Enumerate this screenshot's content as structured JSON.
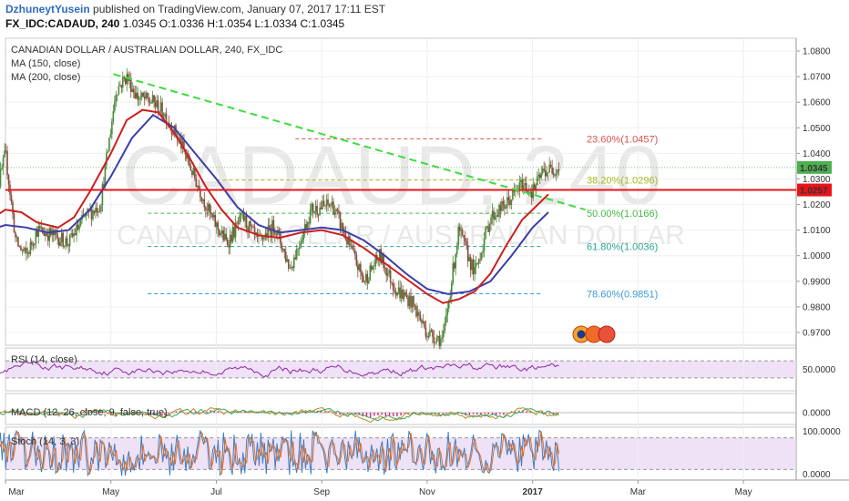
{
  "header": {
    "author": "DzhuneytYusein",
    "published_text": " published on TradingView.com, January 07, 2017 17:11 EST",
    "symbol": "FX_IDC:CADAUD, 240",
    "ohlc": " 1.0345 O:1.0336 H:1.0354 L:1.0334 C:1.0345"
  },
  "chart_data": {
    "type": "line",
    "title": "CANADIAN DOLLAR / AUSTRALIAN DOLLAR, 240, FX_IDC",
    "watermark": {
      "symbol": "CADAUD, 240",
      "name": "CANADIAN DOLLAR / AUSTRALIAN DOLLAR"
    },
    "legend": [
      "MA (150, close)",
      "MA (200, close)"
    ],
    "colors": {
      "candle_up": "#4b8a3d",
      "candle_down": "#8a4b3d",
      "ma150": "#cc1f1f",
      "ma200": "#3b3fa8",
      "trendline": "#3ddc3d",
      "hline": "#e8141a",
      "price_tag": "#4caf50",
      "rsi": "#8e2aa6",
      "macd": "#b58b2a",
      "macd_signal": "#3ea85d",
      "macd_hist": "#e0207a",
      "stoch_k": "#3b7fc4",
      "stoch_d": "#e0702a",
      "band_fill": "#e9d7f3"
    },
    "price_axis": {
      "ticks": [
        "1.0800",
        "1.0700",
        "1.0600",
        "1.0500",
        "1.0400",
        "1.0300",
        "1.0200",
        "1.0100",
        "1.0000",
        "0.9900",
        "0.9800",
        "0.9700"
      ],
      "range": [
        0.965,
        1.085
      ],
      "last_price_label": "1.0345",
      "hline_label": "1.0257",
      "last_price": 1.0345,
      "hline_price": 1.0257
    },
    "time_axis": {
      "labels": [
        "Mar",
        "May",
        "Jul",
        "Sep",
        "Nov",
        "2017",
        "Mar",
        "May"
      ],
      "positions": [
        0,
        2,
        4,
        6,
        8,
        10,
        12,
        14
      ],
      "start_month": 0,
      "end_month": 15
    },
    "fib_levels": [
      {
        "label": "23.60%(1.0457)",
        "price": 1.0457,
        "color": "#d9534f",
        "start": 5.5
      },
      {
        "label": "38.20%(1.0296)",
        "price": 1.0296,
        "color": "#a8b820",
        "start": 4.0
      },
      {
        "label": "50.00%(1.0166)",
        "price": 1.0166,
        "color": "#43b94a",
        "start": 2.7
      },
      {
        "label": "61.80%(1.0036)",
        "price": 1.0036,
        "color": "#2fa58f",
        "start": 2.7
      },
      {
        "label": "78.60%(0.9851)",
        "price": 0.9851,
        "color": "#3a9bd5",
        "start": 2.7
      }
    ],
    "trendline": {
      "from": [
        2.05,
        1.071
      ],
      "to": [
        11.0,
        1.018
      ]
    },
    "price_series": {
      "x": [
        -0.3,
        0.0,
        0.2,
        0.4,
        0.6,
        0.9,
        1.2,
        1.5,
        1.8,
        2.1,
        2.3,
        2.5,
        2.8,
        3.0,
        3.3,
        3.6,
        3.9,
        4.2,
        4.5,
        4.8,
        5.1,
        5.4,
        5.8,
        6.2,
        6.5,
        6.8,
        7.1,
        7.4,
        7.7,
        8.0,
        8.3,
        8.6,
        8.9,
        9.2,
        9.5,
        9.8,
        10.0,
        10.2,
        10.5
      ],
      "y": [
        1.012,
        1.04,
        1.005,
        1.0,
        1.01,
        1.008,
        1.005,
        1.015,
        1.02,
        1.065,
        1.07,
        1.062,
        1.06,
        1.056,
        1.045,
        1.03,
        1.015,
        1.005,
        1.015,
        1.005,
        1.012,
        0.995,
        1.018,
        1.02,
        1.005,
        0.99,
        1.0,
        0.987,
        0.982,
        0.97,
        0.967,
        1.01,
        0.993,
        1.015,
        1.02,
        1.028,
        1.025,
        1.033,
        1.0345
      ]
    },
    "ma150": {
      "x": [
        -0.3,
        0.0,
        0.3,
        0.6,
        1.0,
        1.3,
        1.6,
        2.0,
        2.3,
        2.6,
        2.9,
        3.2,
        3.5,
        3.8,
        4.1,
        4.4,
        4.8,
        5.2,
        5.6,
        6.0,
        6.4,
        6.8,
        7.2,
        7.6,
        8.0,
        8.3,
        8.6,
        8.9,
        9.2,
        9.5,
        9.8,
        10.1,
        10.3
      ],
      "y": [
        1.014,
        1.018,
        1.017,
        1.013,
        1.011,
        1.015,
        1.025,
        1.04,
        1.053,
        1.057,
        1.056,
        1.048,
        1.038,
        1.027,
        1.018,
        1.011,
        1.008,
        1.007,
        1.009,
        1.01,
        1.008,
        1.003,
        0.997,
        0.991,
        0.985,
        0.9815,
        0.983,
        0.986,
        0.993,
        1.004,
        1.014,
        1.02,
        1.024
      ]
    },
    "ma200": {
      "x": [
        -0.3,
        0.0,
        0.4,
        0.8,
        1.2,
        1.6,
        2.0,
        2.4,
        2.8,
        3.2,
        3.6,
        4.0,
        4.4,
        4.8,
        5.2,
        5.6,
        6.0,
        6.4,
        6.8,
        7.2,
        7.6,
        8.0,
        8.4,
        8.8,
        9.2,
        9.6,
        10.0,
        10.3
      ],
      "y": [
        1.01,
        1.012,
        1.011,
        1.009,
        1.01,
        1.018,
        1.031,
        1.046,
        1.055,
        1.05,
        1.04,
        1.03,
        1.019,
        1.012,
        1.009,
        1.01,
        1.011,
        1.01,
        1.006,
        1.0,
        0.993,
        0.987,
        0.985,
        0.986,
        0.99,
        1.0,
        1.011,
        1.017
      ]
    },
    "rsi": {
      "label": "RSI (14, close)",
      "ticks": [
        "50.0000"
      ],
      "range": [
        0,
        100
      ],
      "band": [
        30,
        70
      ],
      "value_label": "50.0000"
    },
    "macd": {
      "label": "MACD (12, 26, close, 9, false, true)",
      "ticks": [
        "0.0000"
      ],
      "value_label": "0.0000"
    },
    "stoch": {
      "label": "Stoch (14, 3, 3)",
      "ticks": [
        "100.0000",
        "0.0000"
      ],
      "range": [
        0,
        100
      ],
      "band": [
        20,
        80
      ]
    }
  }
}
